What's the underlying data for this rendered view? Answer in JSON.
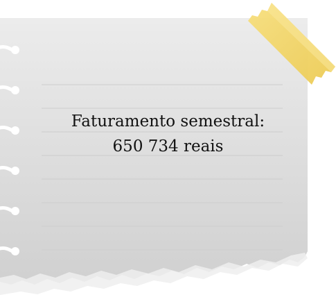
{
  "note": {
    "line1": "Faturamento semestral:",
    "line2": "650 734 reais"
  },
  "colors": {
    "paper_top": "#ebebeb",
    "paper_bottom": "#d2d2d2",
    "rule_line": "#cfcfcf",
    "tape": "#f3d36a",
    "text": "#111111"
  }
}
